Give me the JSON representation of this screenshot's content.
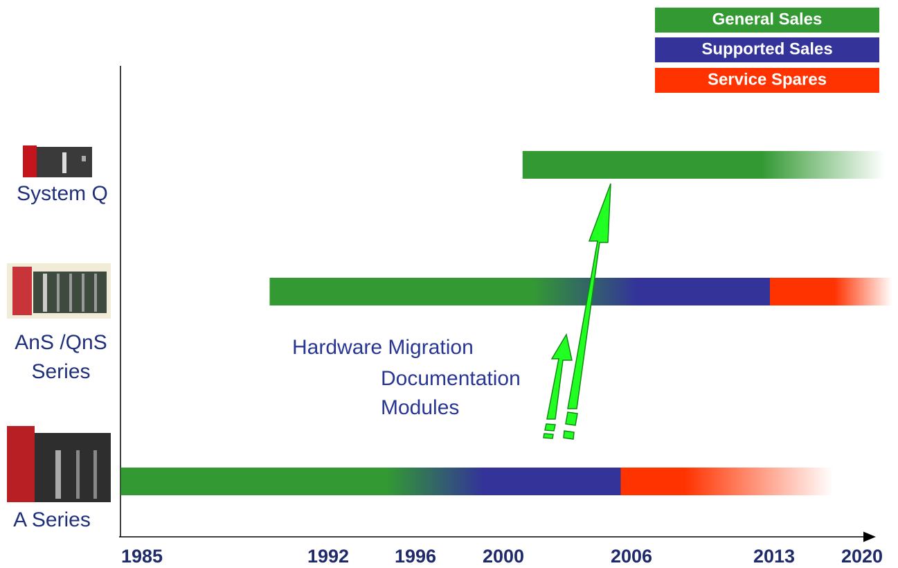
{
  "chart_data": {
    "type": "timeline",
    "series": [
      {
        "name": "General Sales",
        "color": "#339933"
      },
      {
        "name": "Supported Sales",
        "color": "#333399"
      },
      {
        "name": "Service Spares",
        "color": "#ff3300"
      }
    ],
    "xticks": [
      1985,
      1992,
      1996,
      2000,
      2006,
      2013,
      2020
    ],
    "rows": [
      {
        "label": [
          "System Q"
        ],
        "segments": [
          {
            "series": 0,
            "start": 2000.9,
            "end": 2012.4
          }
        ],
        "fade_end": 2021.8
      },
      {
        "label": [
          "AnS /QnS",
          "Series"
        ],
        "segments": [
          {
            "series": 0,
            "start": 1989.8,
            "end": 2001.4
          },
          {
            "series": 1,
            "start": 2006.3,
            "end": 2012.8
          },
          {
            "series": 2,
            "start": 2012.8,
            "end": 2017.8
          }
        ],
        "fade_end": 2022.4
      },
      {
        "label": [
          "A Series"
        ],
        "segments": [
          {
            "series": 0,
            "start": 1984.2,
            "end": 1994.7
          },
          {
            "series": 1,
            "start": 1999.1,
            "end": 2005.5
          },
          {
            "series": 2,
            "start": 2005.5,
            "end": 2008.6
          }
        ],
        "fade_end": 2017.7
      }
    ],
    "annotation": [
      "Hardware Migration",
      "Documentation",
      "Modules"
    ]
  }
}
